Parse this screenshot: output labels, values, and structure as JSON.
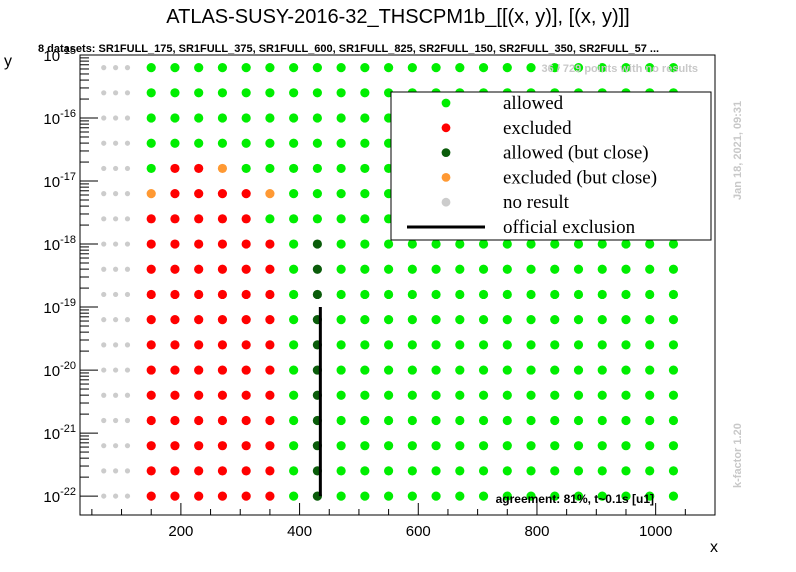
{
  "chart_data": {
    "type": "scatter",
    "title": "ATLAS-SUSY-2016-32_THSCPM1b_[[(x, y)], [(x, y)]]",
    "subtitle": "8 datasets: SR1FULL_175, SR1FULL_375, SR1FULL_600, SR1FULL_825, SR2FULL_150, SR2FULL_350, SR2FULL_57 ...",
    "xlabel": "x",
    "ylabel": "y",
    "xlim": [
      30,
      1100
    ],
    "ylim_log10": [
      -22.3,
      -15
    ],
    "y_scale": "log",
    "x_ticks": [
      "200",
      "400",
      "600",
      "800",
      "1000"
    ],
    "x_tick_values": [
      200,
      400,
      600,
      800,
      1000
    ],
    "y_ticks": [
      "10^-15",
      "10^-16",
      "10^-17",
      "10^-18",
      "10^-19",
      "10^-20",
      "10^-21",
      "10^-22"
    ],
    "y_tick_values_log10": [
      -15,
      -16,
      -17,
      -18,
      -19,
      -20,
      -21,
      -22
    ],
    "y_levels_log10": [
      -22,
      -21.6,
      -21.2,
      -20.8,
      -20.4,
      -20,
      -19.6,
      -19.2,
      -18.8,
      -18.4,
      -18,
      -17.6,
      -17.2,
      -16.8,
      -16.4,
      -16,
      -15.6,
      -15.2
    ],
    "x_first": 70,
    "x_step": 40,
    "x_last": 1060,
    "no_result_columns_below_x": 125,
    "excluded_regions": [
      {
        "y_from": -22,
        "y_to": -17.8,
        "red_x": [
          150,
          370
        ],
        "orange_x": [
          400
        ],
        "dark_x": [
          430
        ]
      },
      {
        "y_from": -17.6,
        "y_to": -17.6,
        "red_x": [
          150,
          330
        ],
        "orange_x": [
          370
        ],
        "dark_x": [
          410
        ]
      }
    ],
    "special_rows": [
      {
        "y": -17.2,
        "red_x": [
          170,
          330
        ],
        "orange_x": [
          150,
          350
        ],
        "dark_x": [],
        "green_from": 370
      },
      {
        "y": -16.8,
        "red_x": [
          170,
          250
        ],
        "orange_x": [
          270
        ],
        "dark_x": [
          290
        ],
        "green_from": 150
      },
      {
        "y": -16.4,
        "red_x": [],
        "orange_x": [],
        "dark_x": [
          170
        ],
        "green_from": 150
      }
    ],
    "official_exclusion": {
      "x": 435,
      "y_from_log10": -22,
      "y_to_log10": -19
    },
    "legend": {
      "placement": "top-right",
      "entries": [
        {
          "label": "allowed",
          "color": "#00ee00",
          "kind": "dot"
        },
        {
          "label": "excluded",
          "color": "#ff0000",
          "kind": "dot"
        },
        {
          "label": "allowed (but close)",
          "color": "#0a5c0a",
          "kind": "dot"
        },
        {
          "label": "excluded (but close)",
          "color": "#ff9933",
          "kind": "dot"
        },
        {
          "label": "no result",
          "color": "#cccccc",
          "kind": "dot"
        },
        {
          "label": "official exclusion",
          "color": "#000000",
          "kind": "line"
        }
      ]
    },
    "annotations": {
      "no_results": "36 / 729 points with no results",
      "date": "Jan 18, 2021, 09:31",
      "kfactor": "k-factor 1.20",
      "agreement": "agreement: 81%, t~0.1s [u1]"
    }
  }
}
